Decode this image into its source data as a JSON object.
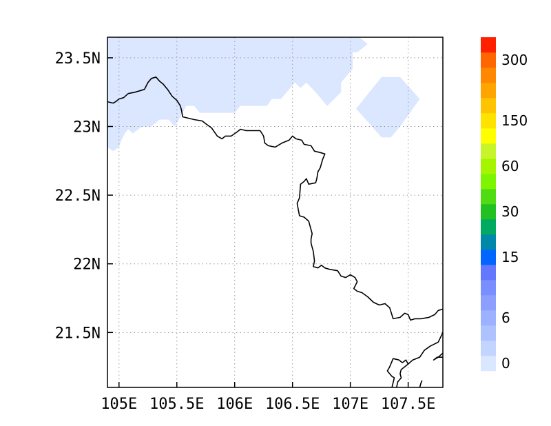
{
  "map": {
    "lon_range": [
      104.9,
      107.8
    ],
    "lat_range": [
      21.1,
      23.65
    ],
    "x_ticks": [
      {
        "value": 105.0,
        "label": "105E"
      },
      {
        "value": 105.5,
        "label": "105.5E"
      },
      {
        "value": 106.0,
        "label": "106E"
      },
      {
        "value": 106.5,
        "label": "106.5E"
      },
      {
        "value": 107.0,
        "label": "107E"
      },
      {
        "value": 107.5,
        "label": "107.5E"
      }
    ],
    "y_ticks": [
      {
        "value": 23.5,
        "label": "23.5N"
      },
      {
        "value": 23.0,
        "label": "23N"
      },
      {
        "value": 22.5,
        "label": "22.5N"
      },
      {
        "value": 22.0,
        "label": "22N"
      },
      {
        "value": 21.5,
        "label": "21.5N"
      }
    ],
    "grid": true,
    "fill_color": "#dbe6ff",
    "border_color": "#000000",
    "shaded_regions": [
      [
        [
          104.9,
          23.65
        ],
        [
          107.08,
          23.65
        ],
        [
          107.15,
          23.6
        ],
        [
          107.06,
          23.54
        ],
        [
          107.02,
          23.54
        ],
        [
          107.02,
          23.42
        ],
        [
          106.92,
          23.32
        ],
        [
          106.92,
          23.25
        ],
        [
          106.8,
          23.15
        ],
        [
          106.7,
          23.25
        ],
        [
          106.62,
          23.32
        ],
        [
          106.57,
          23.28
        ],
        [
          106.52,
          23.32
        ],
        [
          106.4,
          23.2
        ],
        [
          106.32,
          23.2
        ],
        [
          106.28,
          23.15
        ],
        [
          106.05,
          23.15
        ],
        [
          106.0,
          23.1
        ],
        [
          105.7,
          23.1
        ],
        [
          105.65,
          23.15
        ],
        [
          105.58,
          23.15
        ],
        [
          105.52,
          23.05
        ],
        [
          105.48,
          23.0
        ],
        [
          105.43,
          23.05
        ],
        [
          105.35,
          23.05
        ],
        [
          105.28,
          23.0
        ],
        [
          105.2,
          23.0
        ],
        [
          105.12,
          22.95
        ],
        [
          105.08,
          22.98
        ],
        [
          105.05,
          22.95
        ],
        [
          105.02,
          22.9
        ],
        [
          105.0,
          22.85
        ],
        [
          104.95,
          22.82
        ],
        [
          104.9,
          22.85
        ]
      ],
      [
        [
          107.05,
          23.13
        ],
        [
          107.27,
          23.36
        ],
        [
          107.43,
          23.36
        ],
        [
          107.6,
          23.2
        ],
        [
          107.43,
          23.0
        ],
        [
          107.35,
          22.92
        ],
        [
          107.27,
          22.92
        ]
      ]
    ],
    "borders": [
      [
        [
          104.9,
          23.18
        ],
        [
          104.95,
          23.17
        ],
        [
          104.97,
          23.18
        ],
        [
          105.0,
          23.2
        ],
        [
          105.04,
          23.21
        ],
        [
          105.08,
          23.24
        ],
        [
          105.14,
          23.25
        ],
        [
          105.18,
          23.26
        ],
        [
          105.22,
          23.27
        ],
        [
          105.25,
          23.32
        ],
        [
          105.28,
          23.35
        ],
        [
          105.32,
          23.36
        ],
        [
          105.35,
          23.33
        ],
        [
          105.38,
          23.31
        ],
        [
          105.42,
          23.27
        ],
        [
          105.46,
          23.22
        ],
        [
          105.5,
          23.19
        ],
        [
          105.53,
          23.15
        ],
        [
          105.54,
          23.12
        ],
        [
          105.55,
          23.07
        ],
        [
          105.6,
          23.06
        ],
        [
          105.65,
          23.05
        ],
        [
          105.72,
          23.04
        ],
        [
          105.75,
          23.02
        ],
        [
          105.8,
          22.99
        ],
        [
          105.85,
          22.93
        ],
        [
          105.89,
          22.91
        ],
        [
          105.92,
          22.93
        ],
        [
          105.97,
          22.93
        ],
        [
          106.02,
          22.96
        ],
        [
          106.05,
          22.98
        ],
        [
          106.1,
          22.97
        ],
        [
          106.17,
          22.97
        ],
        [
          106.22,
          22.97
        ],
        [
          106.25,
          22.93
        ],
        [
          106.26,
          22.88
        ],
        [
          106.29,
          22.86
        ],
        [
          106.35,
          22.85
        ],
        [
          106.41,
          22.88
        ],
        [
          106.47,
          22.9
        ],
        [
          106.5,
          22.93
        ],
        [
          106.53,
          22.91
        ],
        [
          106.58,
          22.9
        ],
        [
          106.6,
          22.87
        ],
        [
          106.66,
          22.86
        ],
        [
          106.69,
          22.82
        ],
        [
          106.74,
          22.81
        ],
        [
          106.78,
          22.8
        ],
        [
          106.76,
          22.76
        ],
        [
          106.74,
          22.7
        ],
        [
          106.72,
          22.67
        ],
        [
          106.71,
          22.62
        ],
        [
          106.7,
          22.59
        ],
        [
          106.64,
          22.58
        ],
        [
          106.62,
          22.62
        ],
        [
          106.6,
          22.6
        ],
        [
          106.57,
          22.58
        ],
        [
          106.56,
          22.48
        ],
        [
          106.54,
          22.44
        ],
        [
          106.56,
          22.35
        ],
        [
          106.6,
          22.34
        ],
        [
          106.64,
          22.31
        ],
        [
          106.67,
          22.22
        ],
        [
          106.66,
          22.18
        ],
        [
          106.66,
          22.15
        ],
        [
          106.68,
          22.09
        ],
        [
          106.69,
          22.02
        ],
        [
          106.68,
          21.98
        ],
        [
          106.72,
          21.97
        ],
        [
          106.75,
          21.99
        ],
        [
          106.78,
          21.97
        ],
        [
          106.82,
          21.96
        ],
        [
          106.89,
          21.95
        ],
        [
          106.92,
          21.91
        ],
        [
          106.96,
          21.9
        ],
        [
          107.0,
          21.92
        ],
        [
          107.04,
          21.9
        ],
        [
          107.06,
          21.87
        ],
        [
          107.03,
          21.82
        ],
        [
          107.06,
          21.8
        ],
        [
          107.1,
          21.79
        ],
        [
          107.15,
          21.76
        ],
        [
          107.2,
          21.72
        ],
        [
          107.25,
          21.7
        ],
        [
          107.3,
          21.71
        ],
        [
          107.34,
          21.68
        ],
        [
          107.37,
          21.6
        ],
        [
          107.43,
          21.61
        ],
        [
          107.47,
          21.64
        ],
        [
          107.5,
          21.63
        ],
        [
          107.52,
          21.59
        ],
        [
          107.56,
          21.6
        ],
        [
          107.61,
          21.6
        ],
        [
          107.68,
          21.61
        ],
        [
          107.73,
          21.63
        ],
        [
          107.76,
          21.66
        ],
        [
          107.8,
          21.67
        ]
      ],
      [
        [
          107.8,
          21.5
        ],
        [
          107.76,
          21.43
        ],
        [
          107.69,
          21.4
        ],
        [
          107.64,
          21.37
        ],
        [
          107.6,
          21.32
        ],
        [
          107.54,
          21.3
        ],
        [
          107.5,
          21.27
        ],
        [
          107.48,
          21.3
        ],
        [
          107.45,
          21.28
        ],
        [
          107.42,
          21.3
        ],
        [
          107.37,
          21.31
        ],
        [
          107.34,
          21.25
        ],
        [
          107.32,
          21.22
        ],
        [
          107.36,
          21.18
        ],
        [
          107.38,
          21.17
        ],
        [
          107.36,
          21.1
        ]
      ],
      [
        [
          107.8,
          21.35
        ],
        [
          107.76,
          21.32
        ],
        [
          107.72,
          21.3
        ],
        [
          107.75,
          21.32
        ],
        [
          107.8,
          21.32
        ]
      ],
      [
        [
          107.5,
          21.27
        ],
        [
          107.44,
          21.23
        ],
        [
          107.43,
          21.2
        ],
        [
          107.44,
          21.17
        ],
        [
          107.41,
          21.14
        ],
        [
          107.4,
          21.1
        ]
      ],
      [
        [
          107.6,
          21.1
        ],
        [
          107.61,
          21.13
        ],
        [
          107.62,
          21.15
        ]
      ]
    ]
  },
  "colorbar": {
    "colors": [
      "#dbe6ff",
      "#c3d4ff",
      "#aec2ff",
      "#9cb1ff",
      "#8c9fff",
      "#798eff",
      "#6478ff",
      "#0066ff",
      "#0088aa",
      "#00aa60",
      "#22c022",
      "#50dc12",
      "#7ef500",
      "#a5f500",
      "#c8f52a",
      "#ffff00",
      "#ffe300",
      "#ffc400",
      "#ffa500",
      "#ff8800",
      "#ff6600",
      "#ff2000"
    ],
    "labels": [
      {
        "index": 0,
        "text": "0"
      },
      {
        "index": 3,
        "text": "6"
      },
      {
        "index": 7,
        "text": "15"
      },
      {
        "index": 10,
        "text": "30"
      },
      {
        "index": 13,
        "text": "60"
      },
      {
        "index": 16,
        "text": "150"
      },
      {
        "index": 20,
        "text": "300"
      }
    ]
  }
}
